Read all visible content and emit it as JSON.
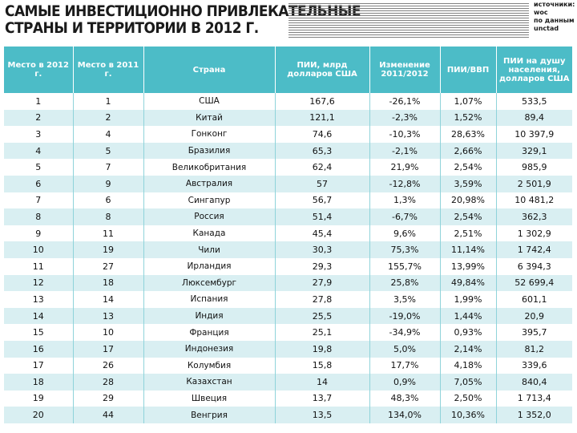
{
  "title": {
    "line1": "САМЫЕ ИНВЕСТИЦИОННО ПРИВЛЕКАТЕЛЬНЫЕ",
    "line2": "СТРАНЫ И ТЕРРИТОРИИ В 2012 Г."
  },
  "source": {
    "line1": "ИСТОЧНИКИ:",
    "line2": "WOC",
    "line3": "ПО ДАННЫМ",
    "line4": "UNCTAD"
  },
  "table": {
    "headers": [
      "Место в 2012 г.",
      "Место в 2011 г.",
      "Страна",
      "ПИИ, млрд долларов США",
      "Изменение 2011/2012",
      "ПИИ/ВВП",
      "ПИИ на душу населения, долларов США"
    ],
    "rows": [
      [
        "1",
        "1",
        "США",
        "167,6",
        "-26,1%",
        "1,07%",
        "533,5"
      ],
      [
        "2",
        "2",
        "Китай",
        "121,1",
        "-2,3%",
        "1,52%",
        "89,4"
      ],
      [
        "3",
        "4",
        "Гонконг",
        "74,6",
        "-10,3%",
        "28,63%",
        "10 397,9"
      ],
      [
        "4",
        "5",
        "Бразилия",
        "65,3",
        "-2,1%",
        "2,66%",
        "329,1"
      ],
      [
        "5",
        "7",
        "Великобритания",
        "62,4",
        "21,9%",
        "2,54%",
        "985,9"
      ],
      [
        "6",
        "9",
        "Австралия",
        "57",
        "-12,8%",
        "3,59%",
        "2 501,9"
      ],
      [
        "7",
        "6",
        "Сингапур",
        "56,7",
        "1,3%",
        "20,98%",
        "10 481,2"
      ],
      [
        "8",
        "8",
        "Россия",
        "51,4",
        "-6,7%",
        "2,54%",
        "362,3"
      ],
      [
        "9",
        "11",
        "Канада",
        "45,4",
        "9,6%",
        "2,51%",
        "1 302,9"
      ],
      [
        "10",
        "19",
        "Чили",
        "30,3",
        "75,3%",
        "11,14%",
        "1 742,4"
      ],
      [
        "11",
        "27",
        "Ирландия",
        "29,3",
        "155,7%",
        "13,99%",
        "6 394,3"
      ],
      [
        "12",
        "18",
        "Люксембург",
        "27,9",
        "25,8%",
        "49,84%",
        "52 699,4"
      ],
      [
        "13",
        "14",
        "Испания",
        "27,8",
        "3,5%",
        "1,99%",
        "601,1"
      ],
      [
        "14",
        "13",
        "Индия",
        "25,5",
        "-19,0%",
        "1,44%",
        "20,9"
      ],
      [
        "15",
        "10",
        "Франция",
        "25,1",
        "-34,9%",
        "0,93%",
        "395,7"
      ],
      [
        "16",
        "17",
        "Индонезия",
        "19,8",
        "5,0%",
        "2,14%",
        "81,2"
      ],
      [
        "17",
        "26",
        "Колумбия",
        "15,8",
        "17,7%",
        "4,18%",
        "339,6"
      ],
      [
        "18",
        "28",
        "Казахстан",
        "14",
        "0,9%",
        "7,05%",
        "840,4"
      ],
      [
        "19",
        "29",
        "Швеция",
        "13,7",
        "48,3%",
        "2,50%",
        "1 713,4"
      ],
      [
        "20",
        "44",
        "Венгрия",
        "13,5",
        "134,0%",
        "10,36%",
        "1 352,0"
      ]
    ]
  }
}
